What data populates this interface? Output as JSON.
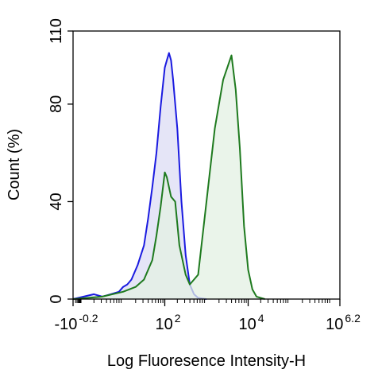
{
  "chart_data": {
    "type": "area",
    "title": "",
    "xlabel": "Log Fluoresence Intensity-H",
    "ylabel": "Count  (%)",
    "ylim": [
      0,
      110
    ],
    "x_scale": "log (biexponential)",
    "grid": false,
    "legend": "none",
    "y_ticks": [
      0,
      40,
      80,
      110
    ],
    "x_ticks": [
      {
        "base": "-10",
        "exp": "-0.2"
      },
      {
        "base": "10",
        "exp": "2"
      },
      {
        "base": "10",
        "exp": "4"
      },
      {
        "base": "10",
        "exp": "6.2"
      }
    ],
    "x_tick_positions": [
      -0.2,
      2,
      4,
      6.2
    ],
    "xlim": [
      -0.2,
      6.2
    ],
    "series": [
      {
        "color": "#1a1ae0",
        "fill": "#dcdcf4",
        "x": [
          -0.2,
          0.3,
          0.5,
          0.7,
          0.9,
          1.0,
          1.1,
          1.2,
          1.35,
          1.5,
          1.6,
          1.7,
          1.8,
          1.9,
          2.0,
          2.05,
          2.1,
          2.15,
          2.2,
          2.3,
          2.4,
          2.5,
          2.6,
          2.7,
          2.8,
          3.0
        ],
        "y": [
          0,
          2,
          1,
          2,
          3,
          5,
          6,
          8,
          14,
          22,
          33,
          46,
          60,
          79,
          95,
          98,
          101,
          98,
          90,
          70,
          40,
          18,
          6,
          2,
          0.5,
          0
        ]
      },
      {
        "color": "#1e7a1e",
        "fill": "#e3f0e3",
        "x": [
          -0.2,
          0.5,
          1.0,
          1.3,
          1.5,
          1.7,
          1.8,
          1.9,
          2.0,
          2.05,
          2.15,
          2.25,
          2.35,
          2.5,
          2.6,
          2.8,
          3.0,
          3.2,
          3.4,
          3.6,
          3.7,
          3.8,
          3.9,
          4.0,
          4.1,
          4.2,
          4.4
        ],
        "y": [
          0,
          1,
          3,
          5,
          8,
          16,
          26,
          38,
          52,
          50,
          42,
          40,
          22,
          10,
          6,
          10,
          40,
          70,
          90,
          100,
          86,
          62,
          30,
          12,
          4,
          1,
          0
        ]
      }
    ]
  }
}
